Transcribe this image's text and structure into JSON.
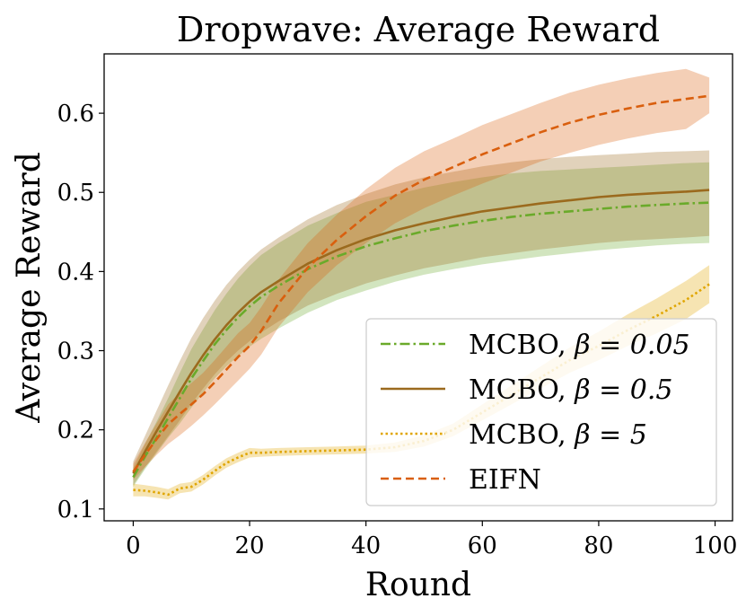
{
  "chart_data": {
    "type": "line",
    "title": "Dropwave: Average Reward",
    "xlabel": "Round",
    "ylabel": "Average Reward",
    "xlim": [
      -5,
      103
    ],
    "ylim": [
      0.085,
      0.675
    ],
    "xticks": [
      0,
      20,
      40,
      60,
      80,
      100
    ],
    "xtick_labels": [
      "0",
      "20",
      "40",
      "60",
      "80",
      "100"
    ],
    "yticks": [
      0.1,
      0.2,
      0.3,
      0.4,
      0.5,
      0.6
    ],
    "ytick_labels": [
      "0.1",
      "0.2",
      "0.3",
      "0.4",
      "0.5",
      "0.6"
    ],
    "legend_position": "lower-right",
    "x": [
      0,
      2,
      4,
      6,
      8,
      10,
      12,
      14,
      16,
      18,
      20,
      22,
      25,
      30,
      35,
      40,
      45,
      50,
      55,
      60,
      65,
      70,
      75,
      80,
      85,
      90,
      95,
      99
    ],
    "series": [
      {
        "name": "MCBO, β = 0.05",
        "legend_main": "MCBO, ",
        "legend_math": "β = 0.05",
        "color": "#6aaa2a",
        "dash": "dashdot",
        "mean": [
          0.14,
          0.166,
          0.19,
          0.215,
          0.24,
          0.265,
          0.287,
          0.308,
          0.326,
          0.342,
          0.356,
          0.368,
          0.382,
          0.403,
          0.419,
          0.432,
          0.442,
          0.451,
          0.458,
          0.464,
          0.469,
          0.473,
          0.476,
          0.479,
          0.482,
          0.484,
          0.486,
          0.487
        ],
        "lower": [
          0.128,
          0.15,
          0.17,
          0.19,
          0.208,
          0.228,
          0.247,
          0.265,
          0.28,
          0.293,
          0.305,
          0.315,
          0.328,
          0.348,
          0.364,
          0.376,
          0.387,
          0.396,
          0.403,
          0.409,
          0.414,
          0.419,
          0.423,
          0.427,
          0.43,
          0.433,
          0.435,
          0.436
        ],
        "upper": [
          0.152,
          0.182,
          0.21,
          0.24,
          0.272,
          0.302,
          0.327,
          0.351,
          0.372,
          0.391,
          0.407,
          0.421,
          0.436,
          0.458,
          0.474,
          0.488,
          0.497,
          0.506,
          0.513,
          0.519,
          0.524,
          0.527,
          0.529,
          0.531,
          0.533,
          0.535,
          0.537,
          0.538
        ]
      },
      {
        "name": "MCBO, β = 0.5",
        "legend_main": "MCBO, ",
        "legend_math": "β = 0.5",
        "color": "#9b6a1e",
        "dash": "solid",
        "mean": [
          0.145,
          0.172,
          0.198,
          0.223,
          0.248,
          0.272,
          0.294,
          0.314,
          0.332,
          0.348,
          0.362,
          0.374,
          0.388,
          0.41,
          0.427,
          0.441,
          0.452,
          0.461,
          0.469,
          0.476,
          0.481,
          0.486,
          0.49,
          0.494,
          0.497,
          0.499,
          0.501,
          0.503
        ],
        "lower": [
          0.13,
          0.152,
          0.172,
          0.192,
          0.212,
          0.233,
          0.252,
          0.27,
          0.286,
          0.3,
          0.312,
          0.323,
          0.337,
          0.357,
          0.372,
          0.385,
          0.395,
          0.404,
          0.411,
          0.418,
          0.423,
          0.428,
          0.432,
          0.436,
          0.439,
          0.441,
          0.443,
          0.445
        ],
        "upper": [
          0.16,
          0.192,
          0.224,
          0.256,
          0.287,
          0.316,
          0.341,
          0.363,
          0.383,
          0.4,
          0.415,
          0.428,
          0.443,
          0.466,
          0.484,
          0.498,
          0.51,
          0.519,
          0.526,
          0.533,
          0.538,
          0.542,
          0.545,
          0.547,
          0.549,
          0.551,
          0.552,
          0.553
        ]
      },
      {
        "name": "MCBO, β = 5",
        "legend_main": "MCBO, ",
        "legend_math": "β = 5",
        "color": "#e0a500",
        "dash": "dotted",
        "mean": [
          0.124,
          0.123,
          0.121,
          0.118,
          0.126,
          0.128,
          0.137,
          0.148,
          0.158,
          0.165,
          0.171,
          0.171,
          0.172,
          0.173,
          0.174,
          0.175,
          0.178,
          0.186,
          0.2,
          0.222,
          0.244,
          0.266,
          0.288,
          0.306,
          0.326,
          0.344,
          0.364,
          0.384
        ],
        "lower": [
          0.116,
          0.116,
          0.114,
          0.112,
          0.12,
          0.122,
          0.131,
          0.142,
          0.152,
          0.159,
          0.165,
          0.166,
          0.167,
          0.168,
          0.169,
          0.17,
          0.172,
          0.179,
          0.192,
          0.212,
          0.232,
          0.252,
          0.272,
          0.288,
          0.306,
          0.322,
          0.34,
          0.36
        ],
        "upper": [
          0.132,
          0.13,
          0.128,
          0.125,
          0.132,
          0.134,
          0.143,
          0.154,
          0.164,
          0.171,
          0.177,
          0.176,
          0.177,
          0.178,
          0.179,
          0.18,
          0.184,
          0.193,
          0.208,
          0.232,
          0.256,
          0.28,
          0.304,
          0.324,
          0.346,
          0.366,
          0.388,
          0.408
        ]
      },
      {
        "name": "EIFN",
        "legend_main": "EIFN",
        "legend_math": "",
        "color": "#d95f0e",
        "dash": "dashed",
        "mean": [
          0.147,
          0.168,
          0.188,
          0.207,
          0.22,
          0.232,
          0.245,
          0.26,
          0.276,
          0.292,
          0.306,
          0.325,
          0.36,
          0.405,
          0.44,
          0.47,
          0.496,
          0.516,
          0.532,
          0.548,
          0.562,
          0.576,
          0.588,
          0.598,
          0.606,
          0.613,
          0.618,
          0.622
        ],
        "lower": [
          0.137,
          0.153,
          0.168,
          0.182,
          0.193,
          0.205,
          0.218,
          0.232,
          0.247,
          0.262,
          0.277,
          0.295,
          0.33,
          0.374,
          0.408,
          0.436,
          0.461,
          0.48,
          0.496,
          0.511,
          0.525,
          0.539,
          0.55,
          0.56,
          0.568,
          0.575,
          0.58,
          0.6
        ],
        "upper": [
          0.157,
          0.183,
          0.208,
          0.232,
          0.247,
          0.259,
          0.272,
          0.288,
          0.305,
          0.322,
          0.335,
          0.355,
          0.39,
          0.436,
          0.472,
          0.504,
          0.531,
          0.552,
          0.568,
          0.585,
          0.599,
          0.613,
          0.626,
          0.636,
          0.644,
          0.651,
          0.656,
          0.645
        ]
      }
    ]
  }
}
